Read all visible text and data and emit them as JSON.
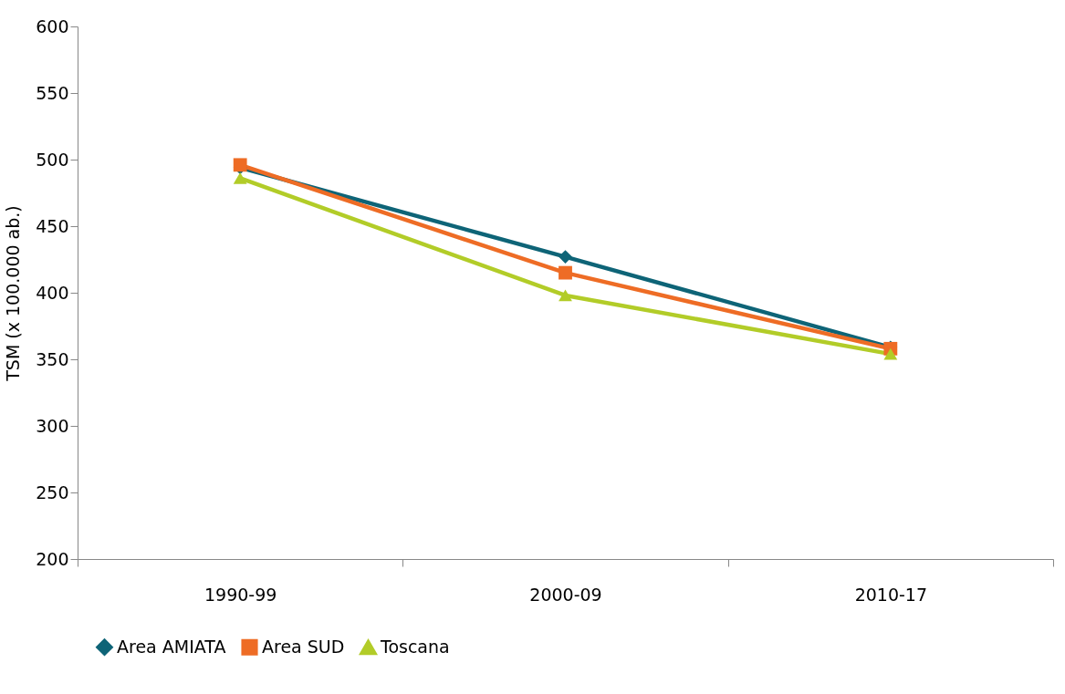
{
  "chart_data": {
    "type": "line",
    "ylabel": "TSM (x 100.000 ab.)",
    "categories": [
      "1990-99",
      "2000-09",
      "2010-17"
    ],
    "series": [
      {
        "name": "Area AMIATA",
        "color": "#0e6477",
        "marker": "diamond",
        "values": [
          494,
          427,
          359
        ]
      },
      {
        "name": "Area SUD",
        "color": "#ee6c25",
        "marker": "square",
        "values": [
          496,
          415,
          358
        ]
      },
      {
        "name": "Toscana",
        "color": "#b2cc28",
        "marker": "triangle",
        "values": [
          486,
          398,
          354
        ]
      }
    ],
    "ylim": [
      200,
      600
    ],
    "yticks": [
      200,
      250,
      300,
      350,
      400,
      450,
      500,
      550,
      600
    ],
    "grid": false,
    "legend": "bottom",
    "line_style": "solid"
  }
}
